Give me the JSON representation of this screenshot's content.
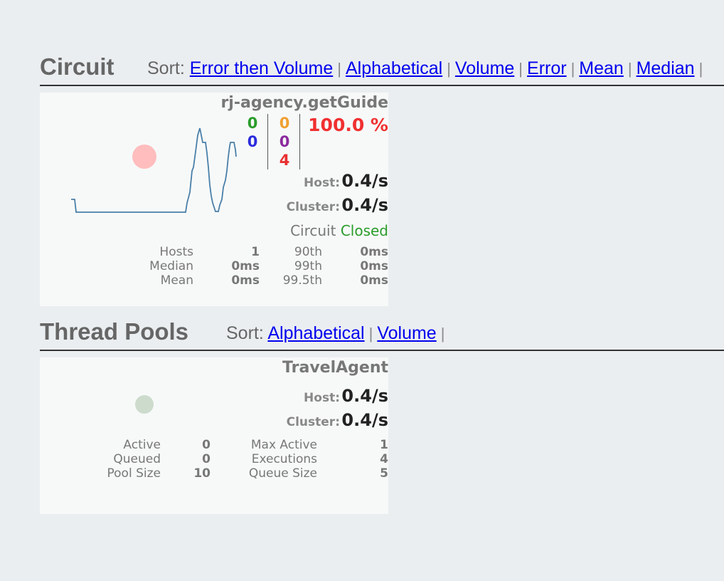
{
  "circuit_section": {
    "title": "Circuit",
    "sort_label": "Sort:",
    "sort_options": [
      "Error then Volume",
      "Alphabetical",
      "Volume",
      "Error",
      "Mean",
      "Median"
    ]
  },
  "circuit_card": {
    "name": "rj-agency.getGuide",
    "counts": {
      "success": "0",
      "short_circuited": "0",
      "timeout": "0",
      "rejected": "0",
      "failure": "4"
    },
    "error_percentage": "100.0 %",
    "host_label": "Host:",
    "host_rate": "0.4/s",
    "cluster_label": "Cluster:",
    "cluster_rate": "0.4/s",
    "circuit_label": "Circuit",
    "circuit_status": "Closed",
    "stats": {
      "hosts_label": "Hosts",
      "hosts": "1",
      "median_label": "Median",
      "median": "0ms",
      "mean_label": "Mean",
      "mean": "0ms",
      "p90_label": "90th",
      "p90": "0ms",
      "p99_label": "99th",
      "p99": "0ms",
      "p995_label": "99.5th",
      "p995": "0ms"
    },
    "colors": {
      "success": "#2a9c2a",
      "short_circuited": "#2b2bdd",
      "timeout": "#f0a030",
      "rejected": "#8b2a9c",
      "failure": "#e83030",
      "error_percentage": "#f03030",
      "health_circle": "#ffbdbd"
    }
  },
  "thread_pools_section": {
    "title": "Thread Pools",
    "sort_label": "Sort:",
    "sort_options": [
      "Alphabetical",
      "Volume"
    ]
  },
  "thread_pool_card": {
    "name": "TravelAgent",
    "host_label": "Host:",
    "host_rate": "0.4/s",
    "cluster_label": "Cluster:",
    "cluster_rate": "0.4/s",
    "stats": {
      "active_label": "Active",
      "active": "0",
      "queued_label": "Queued",
      "queued": "0",
      "pool_size_label": "Pool Size",
      "pool_size": "10",
      "max_active_label": "Max Active",
      "max_active": "1",
      "executions_label": "Executions",
      "executions": "4",
      "queue_size_label": "Queue Size",
      "queue_size": "5"
    },
    "colors": {
      "health_circle": "#cddbcd"
    }
  }
}
